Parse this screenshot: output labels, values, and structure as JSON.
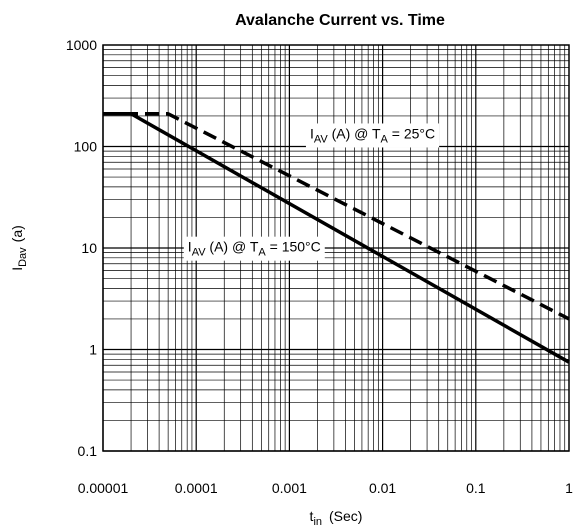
{
  "chart_data": {
    "type": "line",
    "title": "Avalanche Current vs. Time",
    "xlabel": {
      "main": "t",
      "sub": "in",
      "suffix": "(Sec)"
    },
    "ylabel": {
      "main": "I",
      "sub": "Dav",
      "suffix": "(a)"
    },
    "xscale": "log",
    "yscale": "log",
    "xlim": [
      1e-05,
      1
    ],
    "ylim": [
      0.1,
      1000
    ],
    "xticks": [
      1e-05,
      0.0001,
      0.001,
      0.01,
      0.1,
      1
    ],
    "xtick_labels": [
      "0.00001",
      "0.0001",
      "0.001",
      "0.01",
      "0.1",
      "1"
    ],
    "yticks": [
      0.1,
      1,
      10,
      100,
      1000
    ],
    "ytick_labels": [
      "0.1",
      "1",
      "10",
      "100",
      "1000"
    ],
    "grid": true,
    "series": [
      {
        "name": "I_AV (A) @ T_A = 25°C",
        "label_parts": {
          "a": "I",
          "a_sub": "AV",
          "b": " (A) @ T",
          "b_sub": "A",
          "c": " = 25°C"
        },
        "style": "dashed",
        "x": [
          1e-05,
          5e-05,
          1
        ],
        "y": [
          210,
          210,
          2
        ]
      },
      {
        "name": "I_AV (A) @ T_A = 150°C",
        "label_parts": {
          "a": "I",
          "a_sub": "AV",
          "b": " (A) @ T",
          "b_sub": "A",
          "c": " = 150°C"
        },
        "style": "solid",
        "x": [
          1e-05,
          2e-05,
          1
        ],
        "y": [
          210,
          210,
          0.75
        ]
      }
    ],
    "colors": {
      "line": "#000000",
      "grid": "#000000",
      "background": "#ffffff"
    }
  }
}
